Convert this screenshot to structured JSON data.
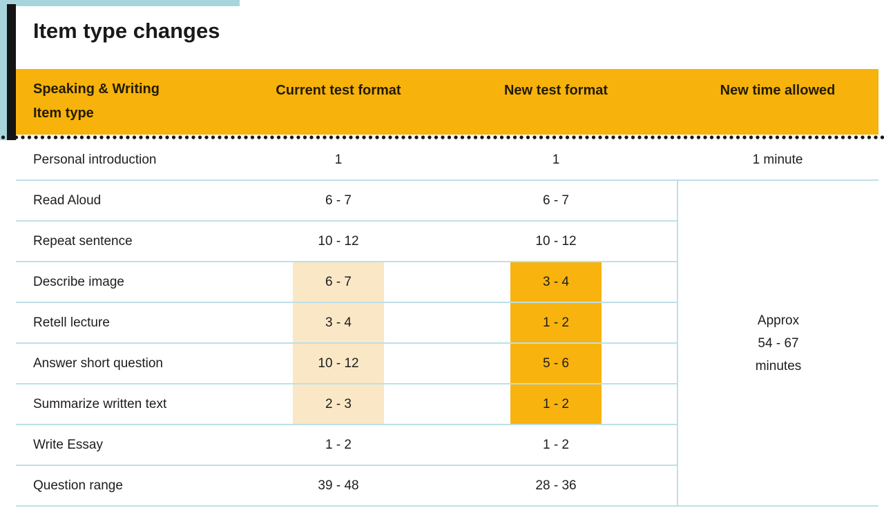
{
  "title": "Item type changes",
  "table": {
    "header": {
      "col0_line1": "Speaking & Writing",
      "col0_line2": "Item type",
      "col1": "Current test format",
      "col2": "New test format",
      "col3": "New time allowed"
    },
    "rows": [
      {
        "item": "Personal introduction",
        "current": "1",
        "new": "1",
        "highlight": false
      },
      {
        "item": "Read Aloud",
        "current": "6 - 7",
        "new": "6 - 7",
        "highlight": false
      },
      {
        "item": "Repeat sentence",
        "current": "10 - 12",
        "new": "10 - 12",
        "highlight": false
      },
      {
        "item": "Describe image",
        "current": "6 - 7",
        "new": "3 - 4",
        "highlight": true
      },
      {
        "item": "Retell lecture",
        "current": "3 - 4",
        "new": "1 - 2",
        "highlight": true
      },
      {
        "item": "Answer short question",
        "current": "10 - 12",
        "new": "5 - 6",
        "highlight": true
      },
      {
        "item": "Summarize written text",
        "current": "2 - 3",
        "new": "1 - 2",
        "highlight": true
      },
      {
        "item": "Write Essay",
        "current": "1 - 2",
        "new": "1 - 2",
        "highlight": false
      },
      {
        "item": "Question range",
        "current": "39 - 48",
        "new": "28 - 36",
        "highlight": false
      }
    ],
    "time_first_row": "1 minute",
    "time_merged": [
      "Approx",
      "54 - 67",
      "minutes"
    ]
  },
  "colors": {
    "header_yellow": "#F7B20B",
    "highlight_strong": "#F8B30E",
    "highlight_soft": "#FAE7C6",
    "separator_blue": "#BDE0E6",
    "accent_blue": "#A8D5DC",
    "bar_black": "#141414",
    "text": "#1D1D1D"
  }
}
